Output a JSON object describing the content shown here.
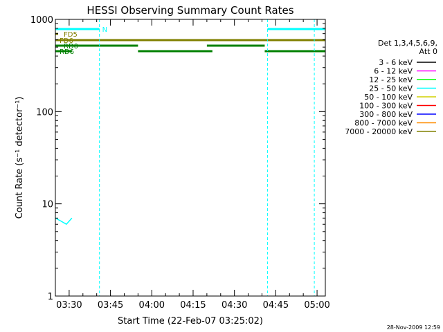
{
  "chart_data": {
    "type": "line",
    "title": "HESSI Observing Summary Count Rates",
    "xlabel": "Start Time (22-Feb-07 03:25:02)",
    "ylabel": "Count Rate (s⁻¹ detector⁻¹)",
    "y_scale": "log",
    "ylim": [
      1,
      1000
    ],
    "xlim_minutes": [
      0,
      98
    ],
    "x_ticks": [
      "03:30",
      "03:45",
      "04:00",
      "04:15",
      "04:30",
      "04:45",
      "05:00"
    ],
    "y_ticks": [
      "1",
      "10",
      "100",
      "1000"
    ],
    "legend_header": [
      "Det 1,3,4,5,6,9,",
      "Att 0"
    ],
    "legend_position": "right",
    "timestamp": "28-Nov-2009 12:59",
    "x": [
      0,
      2,
      4,
      6,
      8,
      10,
      12,
      14,
      16,
      18,
      20,
      22,
      24,
      26,
      28,
      30,
      32,
      34,
      36,
      38,
      40,
      42,
      44,
      46,
      48,
      50,
      52,
      54,
      56,
      58,
      60,
      62,
      64,
      66,
      68,
      70,
      72,
      74,
      76,
      78,
      80,
      82,
      84,
      86,
      88,
      90,
      92,
      94,
      96
    ],
    "series": [
      {
        "name": "3 - 6 keV",
        "color": "#000000",
        "values": [
          null,
          null,
          null,
          null,
          null,
          null,
          null,
          null,
          null,
          null,
          null,
          null,
          null,
          null,
          null,
          null,
          null,
          null,
          null,
          null,
          null,
          null,
          null,
          null,
          null,
          null,
          null,
          null,
          null,
          null,
          null,
          null,
          null,
          null,
          null,
          null,
          null,
          null,
          null,
          null,
          null,
          null,
          null,
          null,
          null,
          null,
          null,
          null,
          null
        ]
      },
      {
        "name": "6 - 12 keV",
        "color": "#ff00ff",
        "values": [
          null,
          null,
          null,
          null,
          null,
          null,
          null,
          null,
          null,
          null,
          null,
          null,
          null,
          null,
          null,
          null,
          null,
          null,
          null,
          null,
          null,
          null,
          null,
          null,
          null,
          null,
          null,
          null,
          null,
          null,
          null,
          null,
          null,
          null,
          null,
          null,
          null,
          null,
          null,
          null,
          null,
          null,
          null,
          null,
          null,
          null,
          null,
          null,
          null
        ]
      },
      {
        "name": "12 - 25 keV",
        "color": "#00ff00",
        "values": [
          null,
          null,
          null,
          null,
          null,
          null,
          null,
          null,
          null,
          null,
          null,
          null,
          null,
          null,
          null,
          null,
          null,
          null,
          null,
          null,
          null,
          null,
          null,
          null,
          null,
          null,
          null,
          null,
          null,
          null,
          null,
          null,
          null,
          null,
          null,
          null,
          null,
          null,
          null,
          null,
          null,
          null,
          null,
          null,
          null,
          null,
          null,
          null,
          null
        ]
      },
      {
        "name": "25 - 50 keV",
        "color": "#00ffff",
        "values": [
          7,
          6.5,
          6,
          7,
          null,
          null,
          null,
          null,
          null,
          null,
          null,
          null,
          null,
          null,
          null,
          null,
          null,
          null,
          null,
          null,
          null,
          null,
          null,
          null,
          null,
          null,
          null,
          null,
          null,
          null,
          null,
          null,
          null,
          null,
          null,
          null,
          null,
          null,
          null,
          null,
          null,
          null,
          null,
          null,
          null,
          null,
          null,
          null,
          null
        ]
      },
      {
        "name": "50 - 100 keV",
        "color": "#d0d000",
        "values": [
          null,
          null,
          null,
          null,
          null,
          null,
          null,
          null,
          null,
          null,
          null,
          null,
          null,
          null,
          null,
          null,
          null,
          null,
          null,
          null,
          null,
          null,
          null,
          null,
          null,
          null,
          null,
          null,
          null,
          null,
          null,
          null,
          null,
          null,
          null,
          null,
          null,
          null,
          null,
          null,
          null,
          null,
          null,
          null,
          null,
          null,
          null,
          null,
          null
        ]
      },
      {
        "name": "100 - 300 keV",
        "color": "#ff0000",
        "values": [
          null,
          null,
          null,
          null,
          null,
          null,
          null,
          null,
          null,
          null,
          null,
          null,
          null,
          null,
          null,
          null,
          null,
          null,
          null,
          null,
          null,
          null,
          null,
          null,
          null,
          null,
          null,
          null,
          null,
          null,
          null,
          null,
          null,
          null,
          null,
          null,
          null,
          null,
          null,
          null,
          null,
          null,
          null,
          null,
          null,
          null,
          null,
          null,
          null
        ]
      },
      {
        "name": "300 - 800 keV",
        "color": "#0000ff",
        "values": [
          null,
          null,
          null,
          null,
          null,
          null,
          null,
          null,
          null,
          null,
          null,
          null,
          null,
          null,
          null,
          null,
          null,
          null,
          null,
          null,
          null,
          null,
          null,
          null,
          null,
          null,
          null,
          null,
          null,
          null,
          null,
          null,
          null,
          null,
          null,
          null,
          null,
          null,
          null,
          null,
          null,
          null,
          null,
          null,
          null,
          null,
          null,
          null,
          null
        ]
      },
      {
        "name": "800 - 7000 keV",
        "color": "#ff8c00",
        "values": [
          null,
          null,
          null,
          null,
          null,
          null,
          null,
          null,
          null,
          null,
          null,
          null,
          null,
          null,
          null,
          null,
          null,
          null,
          null,
          null,
          null,
          null,
          null,
          null,
          null,
          null,
          null,
          null,
          null,
          null,
          null,
          null,
          null,
          null,
          null,
          null,
          null,
          null,
          null,
          null,
          null,
          null,
          null,
          null,
          null,
          null,
          null,
          null,
          null
        ]
      },
      {
        "name": "7000 - 20000 keV",
        "color": "#808000",
        "values": [
          null,
          null,
          null,
          null,
          null,
          null,
          null,
          null,
          null,
          null,
          null,
          null,
          null,
          null,
          null,
          null,
          null,
          null,
          null,
          null,
          null,
          null,
          null,
          null,
          null,
          null,
          null,
          null,
          null,
          null,
          null,
          null,
          null,
          null,
          null,
          null,
          null,
          null,
          null,
          null,
          null,
          null,
          null,
          null,
          null,
          null,
          null,
          null,
          null
        ]
      }
    ],
    "flag_bars": [
      {
        "label": "N",
        "color": "#00ffff",
        "segments": [
          [
            0,
            16
          ],
          [
            77,
            98
          ]
        ]
      },
      {
        "label": "FD5",
        "color": "#808000",
        "segments": [
          [
            0,
            1
          ]
        ]
      },
      {
        "label": "FD6",
        "color": "#808000",
        "segments": [
          [
            0,
            98
          ]
        ]
      },
      {
        "label": "RD0",
        "color": "#008000",
        "segments": [
          [
            0,
            30
          ],
          [
            55,
            76
          ]
        ]
      },
      {
        "label": "RD6",
        "color": "#008000",
        "segments": [
          [
            0,
            6
          ],
          [
            30,
            57
          ],
          [
            76,
            98
          ]
        ]
      }
    ]
  }
}
